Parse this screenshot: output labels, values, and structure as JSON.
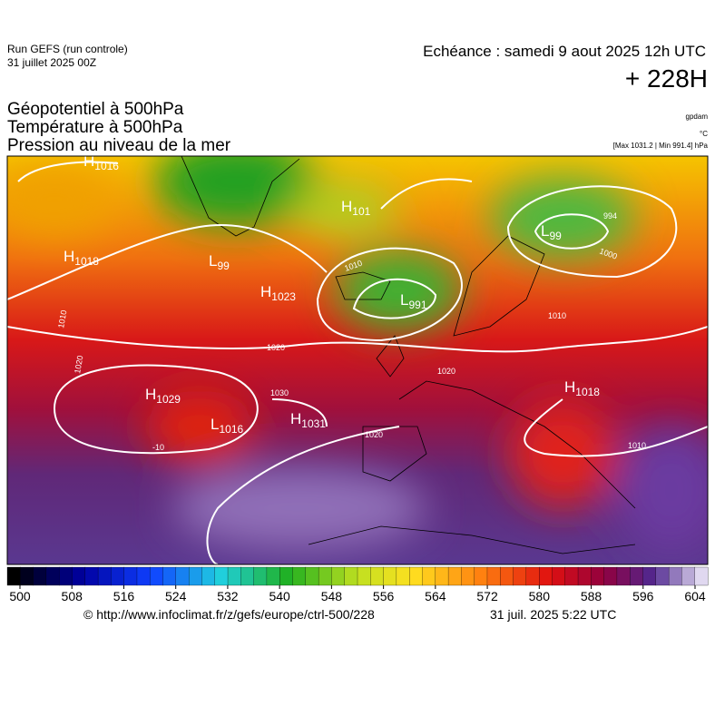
{
  "header": {
    "run": "Run GEFS (run controle)",
    "date": "31 juillet 2025 00Z",
    "valid": "Echéance : samedi 9 aout 2025 12h UTC",
    "lead": "+ 228H"
  },
  "titles": [
    "Géopotentiel à 500hPa",
    "Température à 500hPa",
    "Pression au niveau de la mer"
  ],
  "units": [
    "gpdam",
    "°C",
    "[Max 1031.2 | Min 991.4] hPa"
  ],
  "map": {
    "centers": [
      {
        "type": "H",
        "value": 1016
      },
      {
        "type": "H",
        "value": 1018
      },
      {
        "type": "L",
        "value": 99
      },
      {
        "type": "H",
        "value": 1023
      },
      {
        "type": "H",
        "value": 101
      },
      {
        "type": "L",
        "value": 991
      },
      {
        "type": "L",
        "value": 99
      },
      {
        "type": "H",
        "value": 1029
      },
      {
        "type": "L",
        "value": 1016
      },
      {
        "type": "H",
        "value": 1031
      },
      {
        "type": "H",
        "value": 1018
      }
    ],
    "isobar_labels": [
      1010,
      1020,
      1020,
      1030,
      1020,
      1010,
      1010,
      1000,
      994,
      1010,
      -10,
      1020
    ]
  },
  "colorbar": {
    "ticks": [
      500,
      508,
      516,
      524,
      532,
      540,
      548,
      556,
      564,
      572,
      580,
      588,
      596,
      604
    ]
  },
  "footer": {
    "source": "© http://www.infoclimat.fr/z/gefs/europe/ctrl-500/228",
    "issued": "31 juil. 2025  5:22 UTC"
  }
}
